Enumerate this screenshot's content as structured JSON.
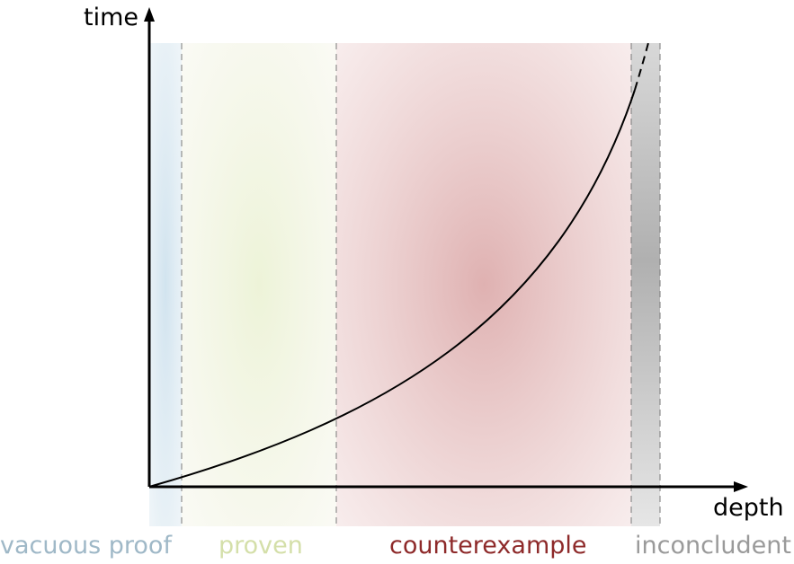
{
  "axes": {
    "y_label": "time",
    "x_label": "depth"
  },
  "regions": [
    {
      "key": "vacuous",
      "label": "vacuous proof",
      "color": "#9fb8c7",
      "fill": "#d4e6f0"
    },
    {
      "key": "proven",
      "label": "proven",
      "color": "#d4dfa9",
      "fill": "#eef3d6"
    },
    {
      "key": "counterexample",
      "label": "counterexample",
      "color": "#8e2a2a",
      "fill": "#d7a7a7"
    },
    {
      "key": "inconcludent",
      "label": "inconcludent",
      "color": "#9a9a9a",
      "fill": "#b5b5b5"
    }
  ],
  "curve": {
    "style": "solid, turning dashed in the inconcludent region"
  }
}
